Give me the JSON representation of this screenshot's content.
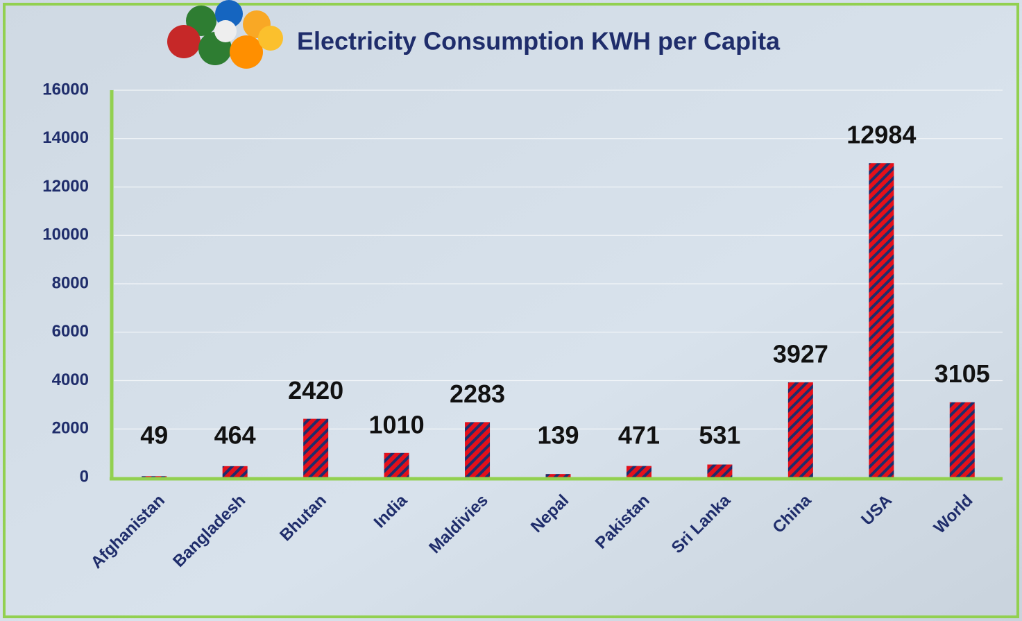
{
  "chart_data": {
    "type": "bar",
    "title": "Electricity Consumption KWH per Capita",
    "categories": [
      "Afghanistan",
      "Bangladesh",
      "Bhutan",
      "India",
      "Maldivies",
      "Nepal",
      "Pakistan",
      "Sri Lanka",
      "China",
      "USA",
      "World"
    ],
    "values": [
      49,
      464,
      2420,
      1010,
      2283,
      139,
      471,
      531,
      3927,
      12984,
      3105
    ],
    "color": "#e3101b",
    "hatch_color": "#1f2d6b",
    "ylim": [
      0,
      16000
    ],
    "yticks": [
      0,
      2000,
      4000,
      6000,
      8000,
      10000,
      12000,
      14000,
      16000
    ],
    "grid": true
  }
}
